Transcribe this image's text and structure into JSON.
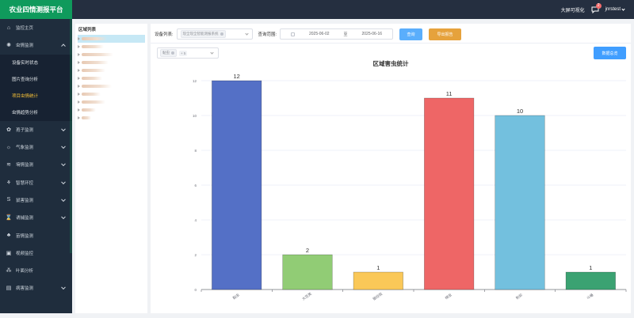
{
  "app": {
    "title": "农业四情测报平台"
  },
  "header": {
    "visualization_label": "大屏可视化",
    "notification_count": "2",
    "username": "jnrstest"
  },
  "sidebar": {
    "items": [
      {
        "label": "监控主页",
        "icon": "home-icon",
        "glyph": "⌂",
        "expandable": false
      },
      {
        "label": "虫情监测",
        "icon": "bug-icon",
        "glyph": "✺",
        "expandable": true,
        "expanded": true,
        "children": [
          {
            "label": "设备实时状态",
            "active": false
          },
          {
            "label": "图片查询分析",
            "active": false
          },
          {
            "label": "项目虫情统计",
            "active": true
          },
          {
            "label": "虫情趋势分析",
            "active": false
          }
        ]
      },
      {
        "label": "孢子监测",
        "icon": "spore-icon",
        "glyph": "✿",
        "expandable": true
      },
      {
        "label": "气象监测",
        "icon": "weather-icon",
        "glyph": "☼",
        "expandable": true
      },
      {
        "label": "墒情监测",
        "icon": "soil-moisture-icon",
        "glyph": "≋",
        "expandable": true
      },
      {
        "label": "智慧环控",
        "icon": "environment-control-icon",
        "glyph": "⚘",
        "expandable": true
      },
      {
        "label": "鼠害监测",
        "icon": "rodent-icon",
        "glyph": "S",
        "expandable": true
      },
      {
        "label": "诱捕监测",
        "icon": "trap-icon",
        "glyph": "⌛",
        "expandable": true
      },
      {
        "label": "苗情监测",
        "icon": "seedling-icon",
        "glyph": "♣",
        "expandable": false
      },
      {
        "label": "视频监控",
        "icon": "video-icon",
        "glyph": "▣",
        "expandable": false
      },
      {
        "label": "叶面分析",
        "icon": "leaf-icon",
        "glyph": "⁂",
        "expandable": false
      },
      {
        "label": "病害监测",
        "icon": "disease-icon",
        "glyph": "▤",
        "expandable": true
      }
    ]
  },
  "area_list": {
    "title": "区域列表",
    "items": [
      {
        "selected": true,
        "w": 32
      },
      {
        "selected": false,
        "w": 28
      },
      {
        "selected": false,
        "w": 40
      },
      {
        "selected": false,
        "w": 34
      },
      {
        "selected": false,
        "w": 30
      },
      {
        "selected": false,
        "w": 26
      },
      {
        "selected": false,
        "w": 38
      },
      {
        "selected": false,
        "w": 24
      },
      {
        "selected": false,
        "w": 30
      },
      {
        "selected": false,
        "w": 18
      },
      {
        "selected": false,
        "w": 12
      }
    ]
  },
  "filters": {
    "device_label": "设备列表:",
    "device_tag": "现全现全智能测报系统",
    "date_label": "查询范围:",
    "date_start": "2025-06-02",
    "date_sep": "至",
    "date_end": "2025-06-16",
    "query_button": "查询",
    "export_button": "导出报告",
    "pest_tag": "黏虫",
    "pest_more": "+ 5",
    "total_button": "数据总览"
  },
  "chart_data": {
    "type": "bar",
    "title": "区域害虫统计",
    "categories": [
      "黏虫",
      "大豆荚",
      "银纹夜",
      "棉虫",
      "粉蚧",
      "斗蝽"
    ],
    "values": [
      12,
      2,
      1,
      11,
      10,
      1
    ],
    "colors": [
      "#5470c6",
      "#91cc75",
      "#fac858",
      "#ee6666",
      "#73c0de",
      "#3ba272"
    ],
    "ylim": [
      0,
      12
    ],
    "yticks": [
      0,
      2,
      4,
      6,
      8,
      10,
      12
    ],
    "grid": true,
    "legend": "none",
    "xlabel": "",
    "ylabel": ""
  }
}
